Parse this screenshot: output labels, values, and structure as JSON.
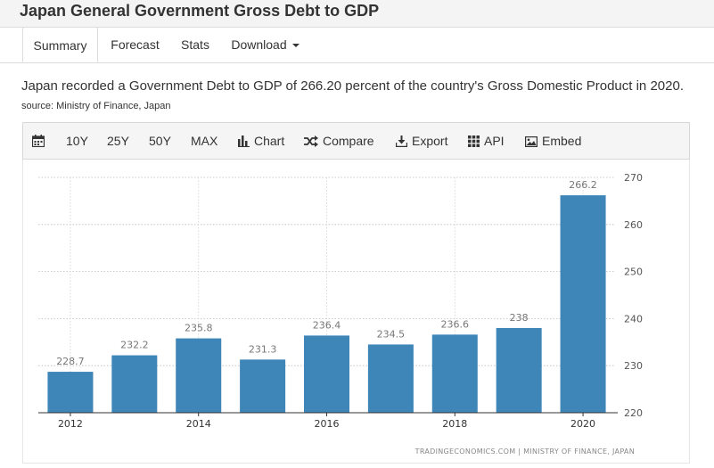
{
  "page_title": "Japan General Government Gross Debt to GDP",
  "tabs": [
    {
      "label": "Summary"
    },
    {
      "label": "Forecast"
    },
    {
      "label": "Stats"
    },
    {
      "label": "Download"
    }
  ],
  "description": {
    "text": "Japan recorded a Government Debt to GDP of 266.20 percent of the country's Gross Domestic Product in 2020.",
    "source": "source: Ministry of Finance, Japan"
  },
  "toolbar": {
    "calendar_icon": "calendar-icon",
    "ranges": [
      "10Y",
      "25Y",
      "50Y",
      "MAX"
    ],
    "chart_label": "Chart",
    "compare_label": "Compare",
    "export_label": "Export",
    "api_label": "API",
    "embed_label": "Embed"
  },
  "chart_data": {
    "type": "bar",
    "categories": [
      "2012",
      "2013",
      "2014",
      "2015",
      "2016",
      "2017",
      "2018",
      "2019",
      "2020"
    ],
    "values": [
      228.7,
      232.2,
      235.8,
      231.3,
      236.4,
      234.5,
      236.6,
      238,
      266.2
    ],
    "data_labels": [
      "228.7",
      "232.2",
      "235.8",
      "231.3",
      "236.4",
      "234.5",
      "236.6",
      "238",
      "266.2"
    ],
    "x_tick_labels": [
      "2012",
      "",
      "2014",
      "",
      "2016",
      "",
      "2018",
      "",
      "2020"
    ],
    "y_ticks": [
      220,
      230,
      240,
      250,
      260,
      270
    ],
    "ylim": [
      220,
      270
    ],
    "bar_color": "#3f86b8",
    "grid": true,
    "y_axis_side": "right",
    "title": "",
    "xlabel": "",
    "ylabel": "",
    "credit": "TRADINGECONOMICS.COM | MINISTRY OF FINANCE, JAPAN"
  }
}
